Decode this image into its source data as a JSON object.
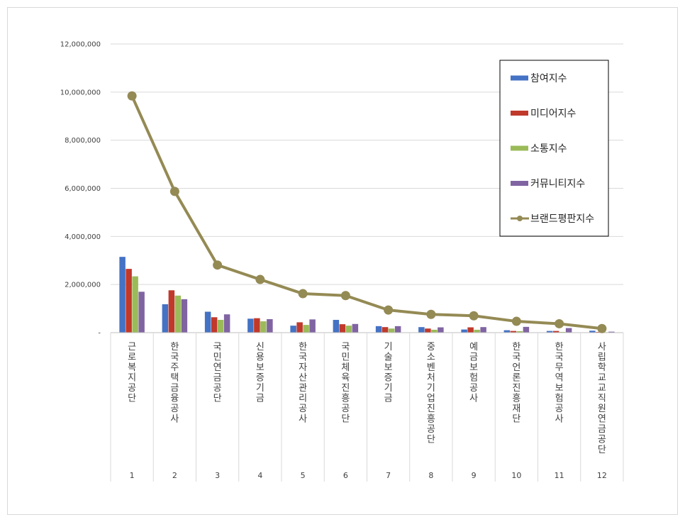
{
  "chart_data": {
    "type": "bar",
    "categories": [
      "1",
      "2",
      "3",
      "4",
      "5",
      "6",
      "7",
      "8",
      "9",
      "10",
      "11",
      "12"
    ],
    "category_names": [
      "근로복지공단",
      "한국주택금융공사",
      "국민연금공단",
      "신용보증기금",
      "한국자산관리공사",
      "국민체육진흥공단",
      "기술보증기금",
      "중소벤처기업진흥공단",
      "예금보험공사",
      "한국언론진흥재단",
      "한국무역보험공사",
      "사립학교교직원연금공단"
    ],
    "ylim": [
      0,
      12000000
    ],
    "yticks": [
      0,
      2000000,
      4000000,
      6000000,
      8000000,
      10000000,
      12000000
    ],
    "ytick_labels": [
      "-",
      "2,000,000",
      "4,000,000",
      "6,000,000",
      "8,000,000",
      "10,000,000",
      "12,000,000"
    ],
    "grid": true,
    "legend_position": "top-right",
    "series": [
      {
        "name": "참여지수",
        "kind": "bar",
        "color": "#4472c4",
        "values": [
          3150000,
          1180000,
          870000,
          580000,
          290000,
          530000,
          270000,
          230000,
          130000,
          100000,
          70000,
          80000
        ]
      },
      {
        "name": "미디어지수",
        "kind": "bar",
        "color": "#c0392b",
        "values": [
          2650000,
          1760000,
          640000,
          600000,
          430000,
          350000,
          230000,
          170000,
          220000,
          70000,
          70000,
          30000
        ]
      },
      {
        "name": "소통지수",
        "kind": "bar",
        "color": "#9bbb59",
        "values": [
          2340000,
          1540000,
          530000,
          470000,
          320000,
          290000,
          170000,
          120000,
          120000,
          60000,
          30000,
          20000
        ]
      },
      {
        "name": "커뮤니티지수",
        "kind": "bar",
        "color": "#8064a2",
        "values": [
          1700000,
          1390000,
          760000,
          560000,
          550000,
          360000,
          270000,
          220000,
          230000,
          240000,
          190000,
          40000
        ]
      },
      {
        "name": "브랜드평판지수",
        "kind": "line",
        "color": "#948a54",
        "values": [
          9840000,
          5870000,
          2810000,
          2210000,
          1620000,
          1540000,
          940000,
          760000,
          700000,
          470000,
          370000,
          170000
        ]
      }
    ]
  }
}
